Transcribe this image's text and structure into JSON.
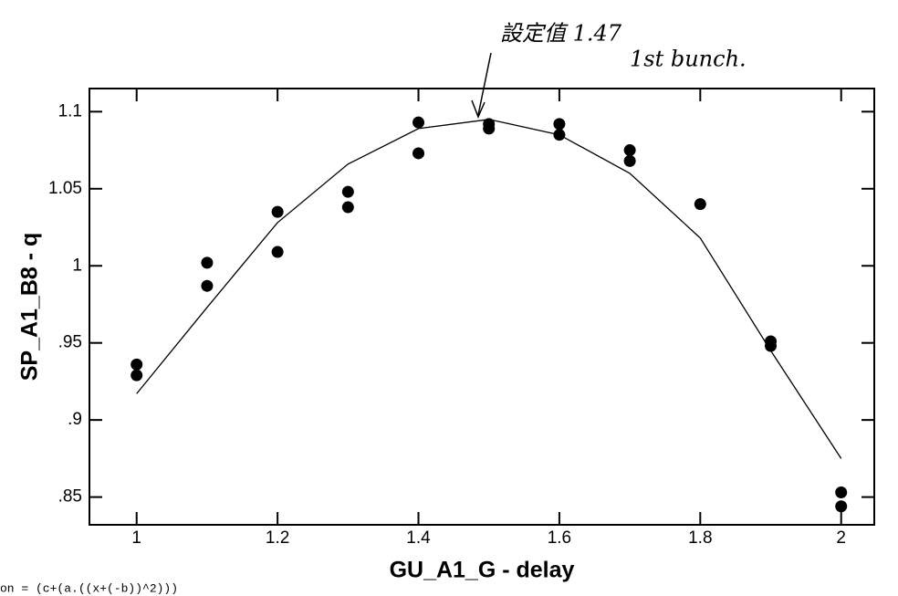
{
  "chart_data": {
    "type": "scatter",
    "xlabel": "GU_A1_G - delay",
    "ylabel": "SP_A1_B8 - q",
    "x": [
      1.0,
      1.0,
      1.1,
      1.1,
      1.2,
      1.2,
      1.3,
      1.3,
      1.4,
      1.4,
      1.5,
      1.5,
      1.6,
      1.6,
      1.7,
      1.7,
      1.8,
      1.9,
      1.9,
      2.0,
      2.0
    ],
    "values": [
      0.936,
      0.929,
      1.002,
      0.987,
      1.035,
      1.009,
      1.048,
      1.038,
      1.093,
      1.073,
      1.092,
      1.089,
      1.092,
      1.085,
      1.075,
      1.068,
      1.04,
      0.951,
      0.948,
      0.853,
      0.844
    ],
    "color": "#000000",
    "curve": {
      "x": [
        1.0,
        1.1,
        1.2,
        1.3,
        1.4,
        1.5,
        1.6,
        1.7,
        1.8,
        1.9,
        2.0
      ],
      "y": [
        0.917,
        0.973,
        1.028,
        1.066,
        1.089,
        1.095,
        1.085,
        1.06,
        1.018,
        0.945,
        0.875
      ]
    },
    "xlim": [
      0.933,
      2.047
    ],
    "ylim": [
      0.832,
      1.115
    ],
    "xticks": [
      1,
      1.2,
      1.4,
      1.6,
      1.8,
      2
    ],
    "yticks": [
      {
        "value": 0.85,
        "label": ".85"
      },
      {
        "value": 0.9,
        "label": ".9"
      },
      {
        "value": 0.95,
        "label": ".95"
      },
      1,
      1.05,
      1.1
    ],
    "annotations": [
      "設定值 1.47",
      "1st bunch."
    ],
    "equation": "on = (c+(a.((x+(-b))^2)))"
  }
}
